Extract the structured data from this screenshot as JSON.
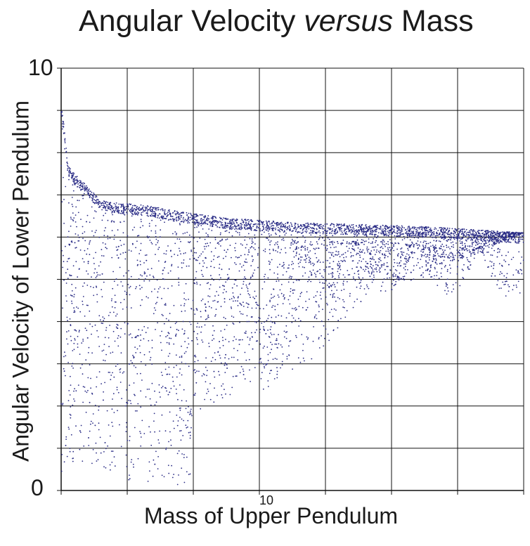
{
  "title": {
    "part1": "Angular Velocity ",
    "part2": "versus",
    "part3": " Mass"
  },
  "chart_data": {
    "type": "scatter",
    "title": "Angular Velocity versus Mass",
    "xlabel": "Mass of Upper Pendulum",
    "ylabel": "Angular Velocity of Lower Pendulum",
    "y_tick_labels": [
      "10",
      "0"
    ],
    "x_tick_labels": [
      "10"
    ],
    "xlim": [
      7,
      14
    ],
    "ylim": [
      0,
      10
    ],
    "x_grid_step": 1,
    "y_grid_step": 1,
    "grid": true,
    "legend": "none",
    "marker_color": "#2b2d86",
    "series": [
      {
        "description_points": [
          [
            7.0,
            9.1
          ],
          [
            7.05,
            8.6
          ],
          [
            7.1,
            7.7
          ],
          [
            7.2,
            7.5
          ],
          [
            7.4,
            7.2
          ],
          [
            7.6,
            6.9
          ],
          [
            7.9,
            6.8
          ],
          [
            8.3,
            6.75
          ],
          [
            8.8,
            6.6
          ],
          [
            9.5,
            6.45
          ],
          [
            10.5,
            6.35
          ],
          [
            11.5,
            6.3
          ],
          [
            12.5,
            6.25
          ],
          [
            13.5,
            6.15
          ],
          [
            14.0,
            6.1
          ]
        ]
      }
    ]
  }
}
